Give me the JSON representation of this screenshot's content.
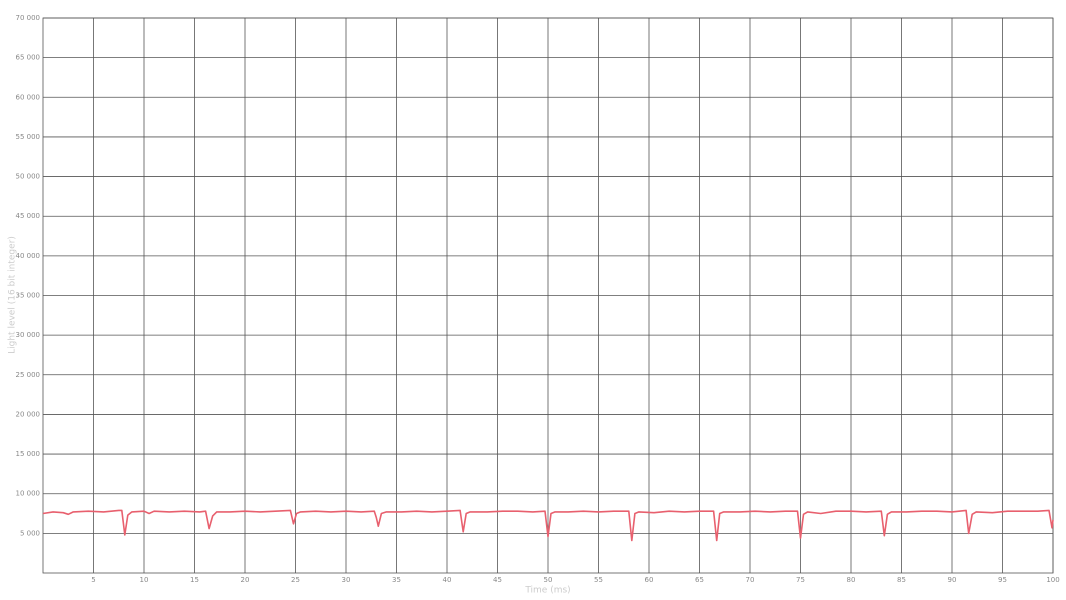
{
  "chart_data": {
    "type": "line",
    "x_label": "Time (ms)",
    "y_label": "Light level (16 bit integer)",
    "x": [
      0,
      1,
      2,
      2.5,
      3,
      4.5,
      6,
      7.5,
      7.8,
      8.1,
      8.4,
      8.8,
      10,
      10.5,
      11,
      12.5,
      14,
      15.5,
      16.1,
      16.45,
      16.8,
      17.2,
      18.5,
      20,
      21.5,
      23,
      24.5,
      24.8,
      25.1,
      25.5,
      27,
      28.5,
      30,
      31.5,
      32.8,
      33,
      33.2,
      33.5,
      34,
      35.5,
      37,
      38.5,
      40,
      41.3,
      41.6,
      41.9,
      42.3,
      44,
      45.5,
      47,
      48.5,
      49.7,
      50,
      50.3,
      50.7,
      52,
      53.5,
      55,
      56.5,
      58,
      58.3,
      58.6,
      59,
      60.5,
      62,
      63.5,
      65,
      66.4,
      66.7,
      67,
      67.4,
      69,
      70.5,
      72,
      73.5,
      74.7,
      75,
      75.3,
      75.7,
      77,
      78.5,
      80,
      81.5,
      83,
      83.3,
      83.6,
      84,
      85.5,
      87,
      88.5,
      90,
      91.4,
      91.65,
      92,
      92.4,
      94,
      95.5,
      97,
      98.5,
      99.6,
      99.9,
      100
    ],
    "series": [
      {
        "name": "Light level",
        "color": "#e8606e",
        "values": [
          7500,
          7700,
          7600,
          7400,
          7700,
          7800,
          7700,
          7900,
          7900,
          4800,
          7300,
          7700,
          7800,
          7500,
          7800,
          7700,
          7800,
          7700,
          7800,
          5600,
          7200,
          7700,
          7700,
          7800,
          7700,
          7800,
          7900,
          6200,
          7500,
          7700,
          7800,
          7700,
          7800,
          7700,
          7800,
          7000,
          5900,
          7500,
          7700,
          7700,
          7800,
          7700,
          7800,
          7900,
          5200,
          7500,
          7700,
          7700,
          7800,
          7800,
          7700,
          7800,
          4600,
          7500,
          7700,
          7700,
          7800,
          7700,
          7800,
          7800,
          4100,
          7500,
          7700,
          7600,
          7800,
          7700,
          7800,
          7800,
          4100,
          7500,
          7700,
          7700,
          7800,
          7700,
          7800,
          7800,
          4400,
          7400,
          7700,
          7500,
          7800,
          7800,
          7700,
          7800,
          4700,
          7400,
          7700,
          7700,
          7800,
          7800,
          7700,
          7900,
          5000,
          7400,
          7700,
          7600,
          7800,
          7800,
          7800,
          7900,
          5700,
          6700
        ]
      }
    ],
    "xlim": [
      0,
      100
    ],
    "ylim": [
      0,
      70000
    ],
    "xticks": [
      5,
      10,
      15,
      20,
      25,
      30,
      35,
      40,
      45,
      50,
      55,
      60,
      65,
      70,
      75,
      80,
      85,
      90,
      95,
      100
    ],
    "yticks": [
      {
        "value": 5000,
        "label": "5 000"
      },
      {
        "value": 10000,
        "label": "10 000"
      },
      {
        "value": 15000,
        "label": "15 000"
      },
      {
        "value": 20000,
        "label": "20 000"
      },
      {
        "value": 25000,
        "label": "25 000"
      },
      {
        "value": 30000,
        "label": "30 000"
      },
      {
        "value": 35000,
        "label": "35 000"
      },
      {
        "value": 40000,
        "label": "40 000"
      },
      {
        "value": 45000,
        "label": "45 000"
      },
      {
        "value": 50000,
        "label": "50 000"
      },
      {
        "value": 55000,
        "label": "55 000"
      },
      {
        "value": 60000,
        "label": "60 000"
      },
      {
        "value": 65000,
        "label": "65 000"
      },
      {
        "value": 70000,
        "label": "70 000"
      }
    ],
    "grid": true
  }
}
